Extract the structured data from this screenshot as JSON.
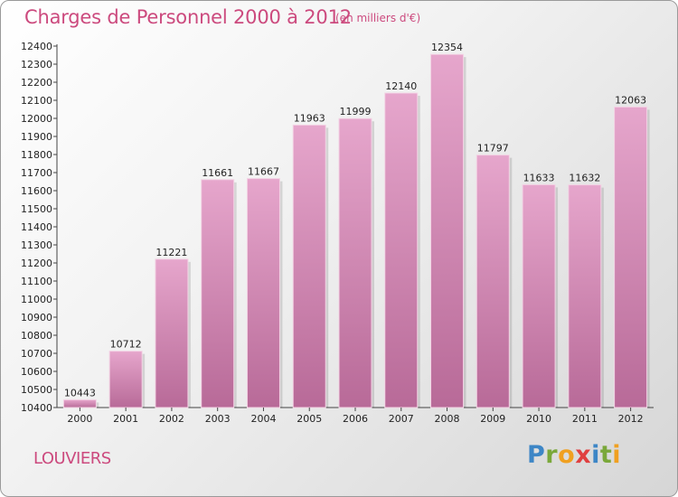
{
  "header": {
    "title": "Charges de Personnel 2000 à 2012",
    "subtitle": "(en milliers d'€)"
  },
  "footer": {
    "city": "LOUVIERS",
    "logo_letters": [
      "P",
      "r",
      "o",
      "x",
      "i",
      "t",
      "i"
    ]
  },
  "colors": {
    "title": "#cc4a7e",
    "bar_top": "#e6a6cc",
    "bar_bottom": "#b86a98"
  },
  "chart_data": {
    "type": "bar",
    "title": "Charges de Personnel 2000 à 2012",
    "subtitle": "(en milliers d'€)",
    "categories": [
      "2000",
      "2001",
      "2002",
      "2003",
      "2004",
      "2005",
      "2006",
      "2007",
      "2008",
      "2009",
      "2010",
      "2011",
      "2012"
    ],
    "values": [
      10443,
      10712,
      11221,
      11661,
      11667,
      11963,
      11999,
      12140,
      12354,
      11797,
      11633,
      11632,
      12063
    ],
    "ylim": [
      10400,
      12400
    ],
    "ytick_step": 100,
    "grid": false,
    "legend": "none"
  }
}
